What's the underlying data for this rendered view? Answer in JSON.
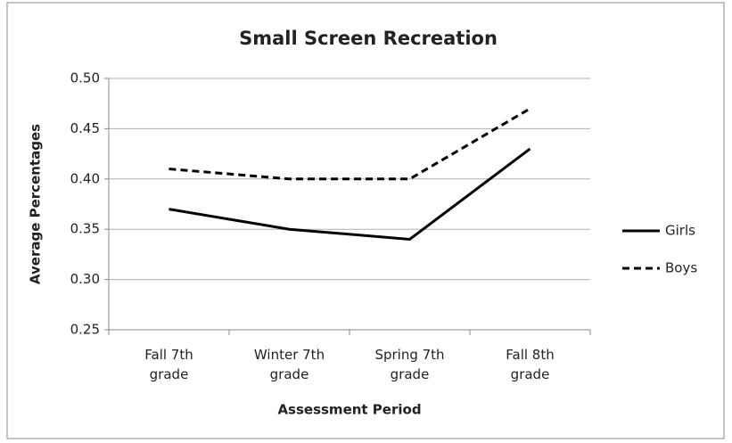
{
  "chart_data": {
    "type": "line",
    "title": "Small Screen Recreation",
    "x_label": "Assessment Period",
    "y_label": "Average Percentages",
    "categories": [
      "Fall 7th grade",
      "Winter 7th grade",
      "Spring 7th grade",
      "Fall 8th grade"
    ],
    "series": [
      {
        "name": "Girls",
        "color": "#000000",
        "line_style": "solid",
        "values": [
          0.37,
          0.35,
          0.34,
          0.43
        ]
      },
      {
        "name": "Boys",
        "color": "#000000",
        "line_style": "dashed",
        "values": [
          0.41,
          0.4,
          0.4,
          0.47
        ]
      }
    ],
    "ylim": [
      0.25,
      0.5
    ],
    "yticks": [
      0.25,
      {
        "value": 0.3,
        "label": "0.30"
      },
      0.35,
      {
        "value": 0.4,
        "label": "0.40"
      },
      0.45,
      {
        "value": 0.5,
        "label": "0.50"
      }
    ],
    "grid": true,
    "legend": "right"
  }
}
